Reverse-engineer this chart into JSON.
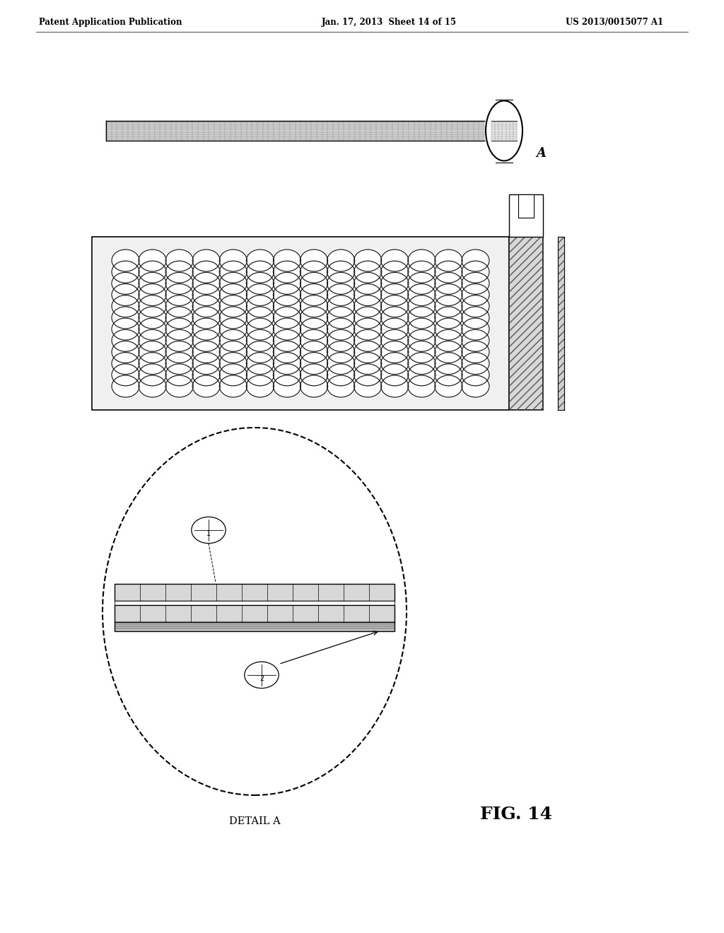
{
  "bg_color": "#ffffff",
  "header_text": "Patent Application Publication",
  "header_date": "Jan. 17, 2013  Sheet 14 of 15",
  "header_patent": "US 2013/0015077 A1",
  "fig_label": "FIG. 14",
  "detail_label": "DETAIL A",
  "label_A": "A",
  "page_width": 10.24,
  "page_height": 13.2
}
